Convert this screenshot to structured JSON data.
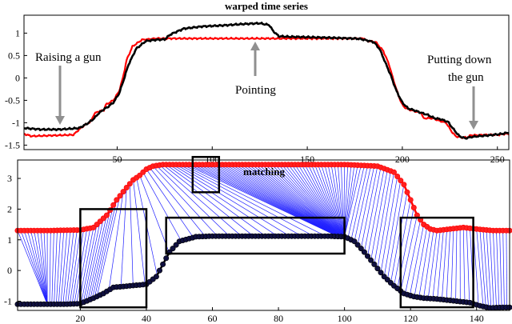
{
  "chart_data": [
    {
      "type": "line",
      "title": "warped time series",
      "xlim": [
        1,
        256
      ],
      "ylim": [
        -1.6,
        1.4
      ],
      "xticks": [
        50,
        100,
        150,
        200,
        250
      ],
      "yticks": [
        -1.5,
        -1,
        -0.5,
        0,
        0.5,
        1
      ],
      "ytick_labels": [
        "-1.5",
        "-1",
        "-0.5",
        "0",
        "0.5",
        "1"
      ],
      "grid": false,
      "series": [
        {
          "color": "#ff0000",
          "x": [
            1,
            5,
            20,
            27,
            30,
            33,
            36,
            38,
            40,
            43,
            44,
            48,
            51,
            53,
            55,
            58,
            63,
            68,
            70,
            76,
            77,
            85,
            100,
            120,
            150,
            170,
            180,
            181,
            186,
            190,
            193,
            195,
            198,
            200,
            201,
            203,
            207,
            210,
            211,
            216,
            219,
            223,
            226,
            228,
            231,
            234,
            236,
            239,
            243,
            246,
            251,
            253,
            256
          ],
          "y": [
            -1.25,
            -1.3,
            -1.28,
            -1.27,
            -1.15,
            -1.05,
            -0.98,
            -0.8,
            -0.75,
            -0.72,
            -0.6,
            -0.5,
            -0.3,
            0.0,
            0.4,
            0.7,
            0.85,
            0.87,
            0.88,
            0.88,
            0.88,
            0.88,
            0.88,
            0.88,
            0.88,
            0.88,
            0.88,
            0.83,
            0.8,
            0.6,
            0.3,
            0.0,
            -0.4,
            -0.6,
            -0.65,
            -0.7,
            -0.75,
            -0.78,
            -0.9,
            -0.9,
            -0.95,
            -1.0,
            -1.2,
            -1.3,
            -1.33,
            -1.33,
            -1.28,
            -1.28,
            -1.27,
            -1.27,
            -1.27,
            -1.25,
            -1.25
          ]
        },
        {
          "color": "#000000",
          "x": [
            1,
            10,
            20,
            30,
            33,
            35,
            38,
            40,
            43,
            45,
            48,
            51,
            53,
            56,
            60,
            65,
            70,
            75,
            78,
            85,
            95,
            105,
            115,
            125,
            130,
            132,
            135,
            140,
            160,
            175,
            178,
            180,
            185,
            188,
            191,
            194,
            197,
            200,
            203,
            206,
            210,
            213,
            217,
            220,
            224,
            227,
            230,
            233,
            236,
            240,
            246,
            252,
            256
          ],
          "y": [
            -1.12,
            -1.15,
            -1.15,
            -1.12,
            -1.05,
            -1.0,
            -0.9,
            -0.8,
            -0.7,
            -0.65,
            -0.55,
            -0.35,
            -0.1,
            0.3,
            0.65,
            0.82,
            0.85,
            0.86,
            0.97,
            1.1,
            1.15,
            1.17,
            1.2,
            1.22,
            1.18,
            1.05,
            0.93,
            0.92,
            0.9,
            0.88,
            0.87,
            0.85,
            0.8,
            0.65,
            0.35,
            0.05,
            -0.3,
            -0.55,
            -0.68,
            -0.72,
            -0.78,
            -0.82,
            -0.9,
            -0.92,
            -0.98,
            -1.15,
            -1.3,
            -1.35,
            -1.32,
            -1.3,
            -1.28,
            -1.25,
            -1.22
          ]
        }
      ],
      "annotations": [
        {
          "lines": [
            "Raising a gun"
          ]
        },
        {
          "lines": [
            "Pointing"
          ]
        },
        {
          "lines": [
            "Putting down",
            "the gun"
          ]
        }
      ]
    },
    {
      "type": "line",
      "title": "matching",
      "xlim": [
        1,
        150
      ],
      "ylim": [
        -1.3,
        3.6
      ],
      "xticks": [
        20,
        40,
        60,
        80,
        100,
        120,
        140
      ],
      "yticks": [
        -1,
        0,
        1,
        2,
        3
      ],
      "grid": false,
      "series": [
        {
          "color": "#ff0000",
          "x": [
            1,
            10,
            20,
            24,
            28,
            31,
            34,
            36,
            38,
            40,
            42,
            45,
            48,
            52,
            60,
            80,
            100,
            110,
            115,
            118,
            120,
            122,
            124,
            126,
            128,
            132,
            136,
            140,
            145,
            150
          ],
          "y": [
            1.3,
            1.3,
            1.32,
            1.4,
            1.8,
            2.3,
            2.7,
            2.95,
            3.1,
            3.3,
            3.4,
            3.45,
            3.45,
            3.45,
            3.45,
            3.45,
            3.45,
            3.4,
            3.2,
            2.8,
            2.3,
            1.8,
            1.5,
            1.35,
            1.3,
            1.35,
            1.4,
            1.35,
            1.3,
            1.3
          ]
        },
        {
          "color": "#000000",
          "x": [
            1,
            8,
            15,
            20,
            24,
            27,
            30,
            35,
            40,
            43,
            45,
            47,
            50,
            55,
            60,
            65,
            75,
            85,
            95,
            100,
            103,
            106,
            109,
            112,
            115,
            118,
            121,
            124,
            127,
            130,
            134,
            138,
            141,
            144,
            148,
            150
          ],
          "y": [
            -1.1,
            -1.1,
            -1.1,
            -1.08,
            -0.9,
            -0.75,
            -0.55,
            -0.5,
            -0.45,
            -0.2,
            0.2,
            0.6,
            0.95,
            1.1,
            1.12,
            1.12,
            1.12,
            1.12,
            1.12,
            1.1,
            0.95,
            0.6,
            0.2,
            -0.2,
            -0.5,
            -0.75,
            -0.85,
            -0.9,
            -0.92,
            -0.95,
            -1.0,
            -1.05,
            -1.15,
            -1.22,
            -1.2,
            -1.2
          ]
        }
      ],
      "boxes": [
        {
          "x0": 54,
          "x1": 62,
          "y0": 2.55,
          "y1": 3.7
        },
        {
          "x0": 20,
          "x1": 40,
          "y0": -1.2,
          "y1": 2.0
        },
        {
          "x0": 46,
          "x1": 100,
          "y0": 0.55,
          "y1": 1.72
        },
        {
          "x0": 117,
          "x1": 139,
          "y0": -1.2,
          "y1": 1.72
        }
      ]
    }
  ]
}
